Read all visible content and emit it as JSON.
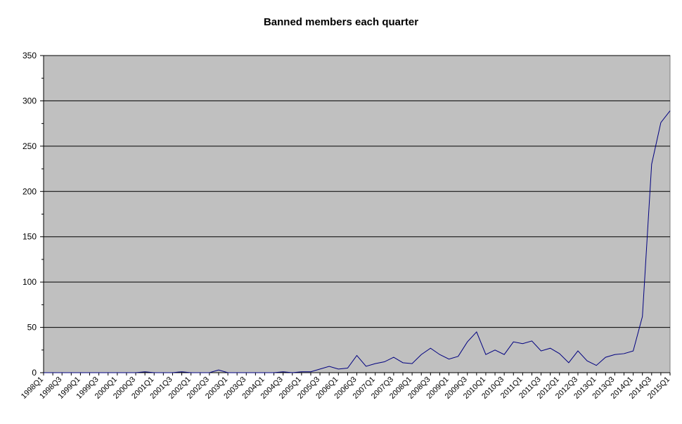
{
  "chart_data": {
    "type": "line",
    "title": "Banned members each quarter",
    "categories": [
      "1998Q1",
      null,
      "1998Q3",
      null,
      "1999Q1",
      null,
      "1999Q3",
      null,
      "2000Q1",
      null,
      "2000Q3",
      null,
      "2001Q1",
      null,
      "2001Q3",
      null,
      "2002Q1",
      null,
      "2002Q3",
      null,
      "2003Q1",
      null,
      "2003Q3",
      null,
      "2004Q1",
      null,
      "2004Q3",
      null,
      "2005Q1",
      null,
      "2005Q3",
      null,
      "2006Q1",
      null,
      "2006Q3",
      null,
      "2007Q1",
      null,
      "2007Q3",
      null,
      "2008Q1",
      null,
      "2008Q3",
      null,
      "2009Q1",
      null,
      "2009Q3",
      null,
      "2010Q1",
      null,
      "2010Q3",
      null,
      "2011Q1",
      null,
      "2011Q3",
      null,
      "2012Q1",
      null,
      "2012Q3",
      null,
      "2013Q1",
      null,
      "2013Q3",
      null,
      "2014Q1",
      null,
      "2014Q3",
      null,
      "2015Q1"
    ],
    "series": [
      {
        "name": null,
        "color": "#000080",
        "values": [
          0,
          0,
          0,
          0,
          0,
          0,
          0,
          0,
          0,
          0,
          0,
          1,
          0,
          0,
          0,
          1,
          0,
          0,
          0,
          3,
          0,
          0,
          0,
          0,
          0,
          0,
          1,
          0,
          1,
          1,
          4,
          7,
          4,
          5,
          19,
          7,
          10,
          12,
          17,
          11,
          10,
          20,
          27,
          20,
          15,
          18,
          34,
          45,
          20,
          25,
          20,
          34,
          32,
          35,
          24,
          27,
          21,
          11,
          24,
          13,
          8,
          17,
          20,
          21,
          24,
          62,
          230,
          276,
          289
        ]
      }
    ],
    "ylim": [
      0,
      350
    ],
    "yticks": [
      0,
      50,
      100,
      150,
      200,
      250,
      300,
      350
    ],
    "grid": true
  }
}
